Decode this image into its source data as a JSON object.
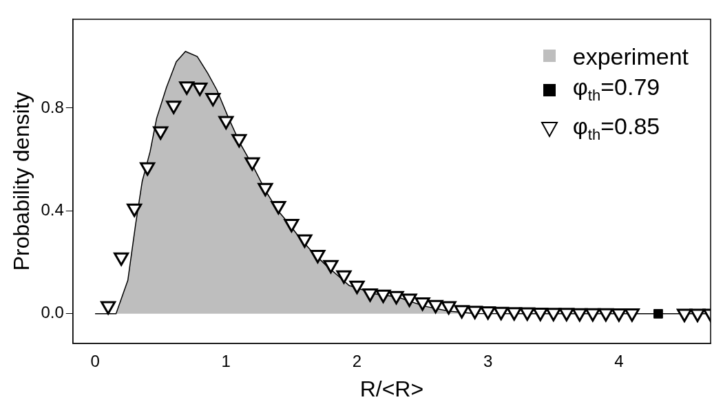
{
  "chart_data": {
    "type": "scatter",
    "xlabel": "R/<R>",
    "ylabel": "Probability density",
    "xlim": [
      -0.17,
      4.7
    ],
    "xticks": [
      0,
      1,
      2,
      3,
      4
    ],
    "ylim": [
      -0.115,
      1.145
    ],
    "yticks": [
      {
        "value": 0,
        "label": "0.0"
      },
      0.4,
      0.8
    ],
    "grid": false,
    "legend": "top right",
    "series": [
      {
        "name": "experiment",
        "type": "area",
        "color": "#bebebe",
        "marker": "none",
        "x": [
          0,
          0.16,
          0.25,
          0.31,
          0.36,
          0.42,
          0.47,
          0.545,
          0.62,
          0.69,
          0.78,
          0.86,
          0.93,
          1.02,
          1.11,
          1.21,
          1.3,
          1.39,
          1.48,
          1.57,
          1.66,
          1.76,
          1.85,
          1.94,
          2.03,
          2.14,
          2.31,
          2.51,
          2.7,
          2.9,
          3.5,
          4.7
        ],
        "values": [
          0,
          0,
          0.13,
          0.35,
          0.515,
          0.63,
          0.76,
          0.88,
          0.98,
          1.02,
          1.0,
          0.935,
          0.87,
          0.76,
          0.66,
          0.57,
          0.48,
          0.405,
          0.35,
          0.29,
          0.24,
          0.19,
          0.15,
          0.11,
          0.095,
          0.077,
          0.065,
          0.03,
          0.01,
          0.001,
          0,
          0
        ]
      },
      {
        "name": "φ$_{th}$=0.79",
        "color": "#000000",
        "marker": "square",
        "x": [
          4.3
        ],
        "values": [
          0
        ]
      },
      {
        "name": "φ$_{th}$=0.85",
        "color": "#000000",
        "marker": "triangle",
        "x": [
          0.1,
          0.2,
          0.3,
          0.4,
          0.5,
          0.6,
          0.7,
          0.8,
          0.9,
          1.0,
          1.1,
          1.2,
          1.3,
          1.4,
          1.5,
          1.6,
          1.7,
          1.8,
          1.9,
          2.0,
          2.1,
          2.2,
          2.3,
          2.4,
          2.5,
          2.6,
          2.7,
          2.8,
          2.9,
          3.0,
          3.1,
          3.2,
          3.3,
          3.4,
          3.5,
          3.6,
          3.7,
          3.8,
          3.9,
          4.0,
          4.1,
          4.5,
          4.6,
          4.7
        ],
        "values": [
          0.03,
          0.22,
          0.41,
          0.57,
          0.71,
          0.81,
          0.885,
          0.88,
          0.84,
          0.75,
          0.68,
          0.59,
          0.49,
          0.42,
          0.35,
          0.29,
          0.23,
          0.19,
          0.15,
          0.11,
          0.08,
          0.075,
          0.07,
          0.06,
          0.045,
          0.035,
          0.03,
          0.015,
          0.012,
          0.01,
          0.008,
          0.007,
          0.006,
          0.005,
          0.004,
          0.004,
          0.003,
          0.003,
          0.003,
          0.002,
          0.002,
          0.001,
          0.001,
          0.001
        ]
      }
    ]
  }
}
